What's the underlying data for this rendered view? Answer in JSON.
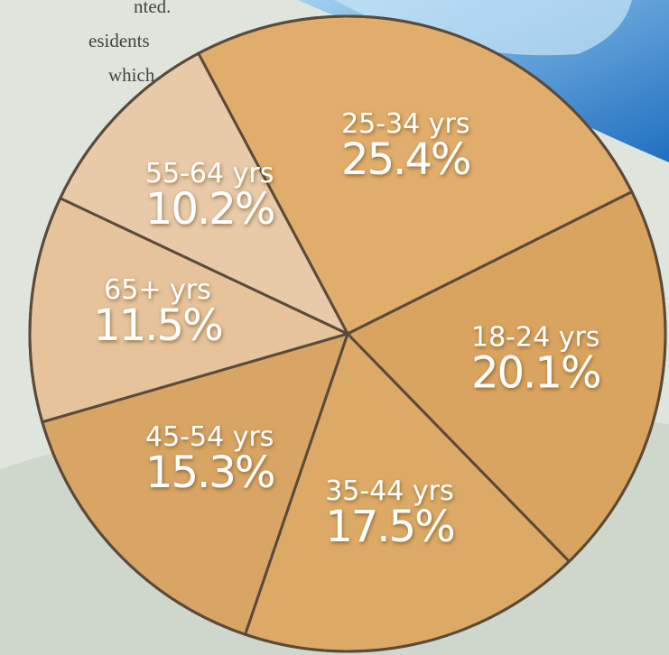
{
  "chart_data": {
    "type": "pie",
    "annotations": [
      "nted.",
      "esidents",
      "which"
    ],
    "categories": [
      "25-34 yrs",
      "18-24 yrs",
      "35-44 yrs",
      "45-54 yrs",
      "65+ yrs",
      "55-64 yrs"
    ],
    "values": [
      25.4,
      20.1,
      17.5,
      15.3,
      11.5,
      10.2
    ],
    "value_labels": [
      "25.4%",
      "20.1%",
      "17.5%",
      "15.3%",
      "11.5%",
      "10.2%"
    ],
    "colors": [
      "#e0ad6c",
      "#d9a45f",
      "#dcaa66",
      "#d8a565",
      "#e6c39a",
      "#e8c9a8"
    ]
  }
}
